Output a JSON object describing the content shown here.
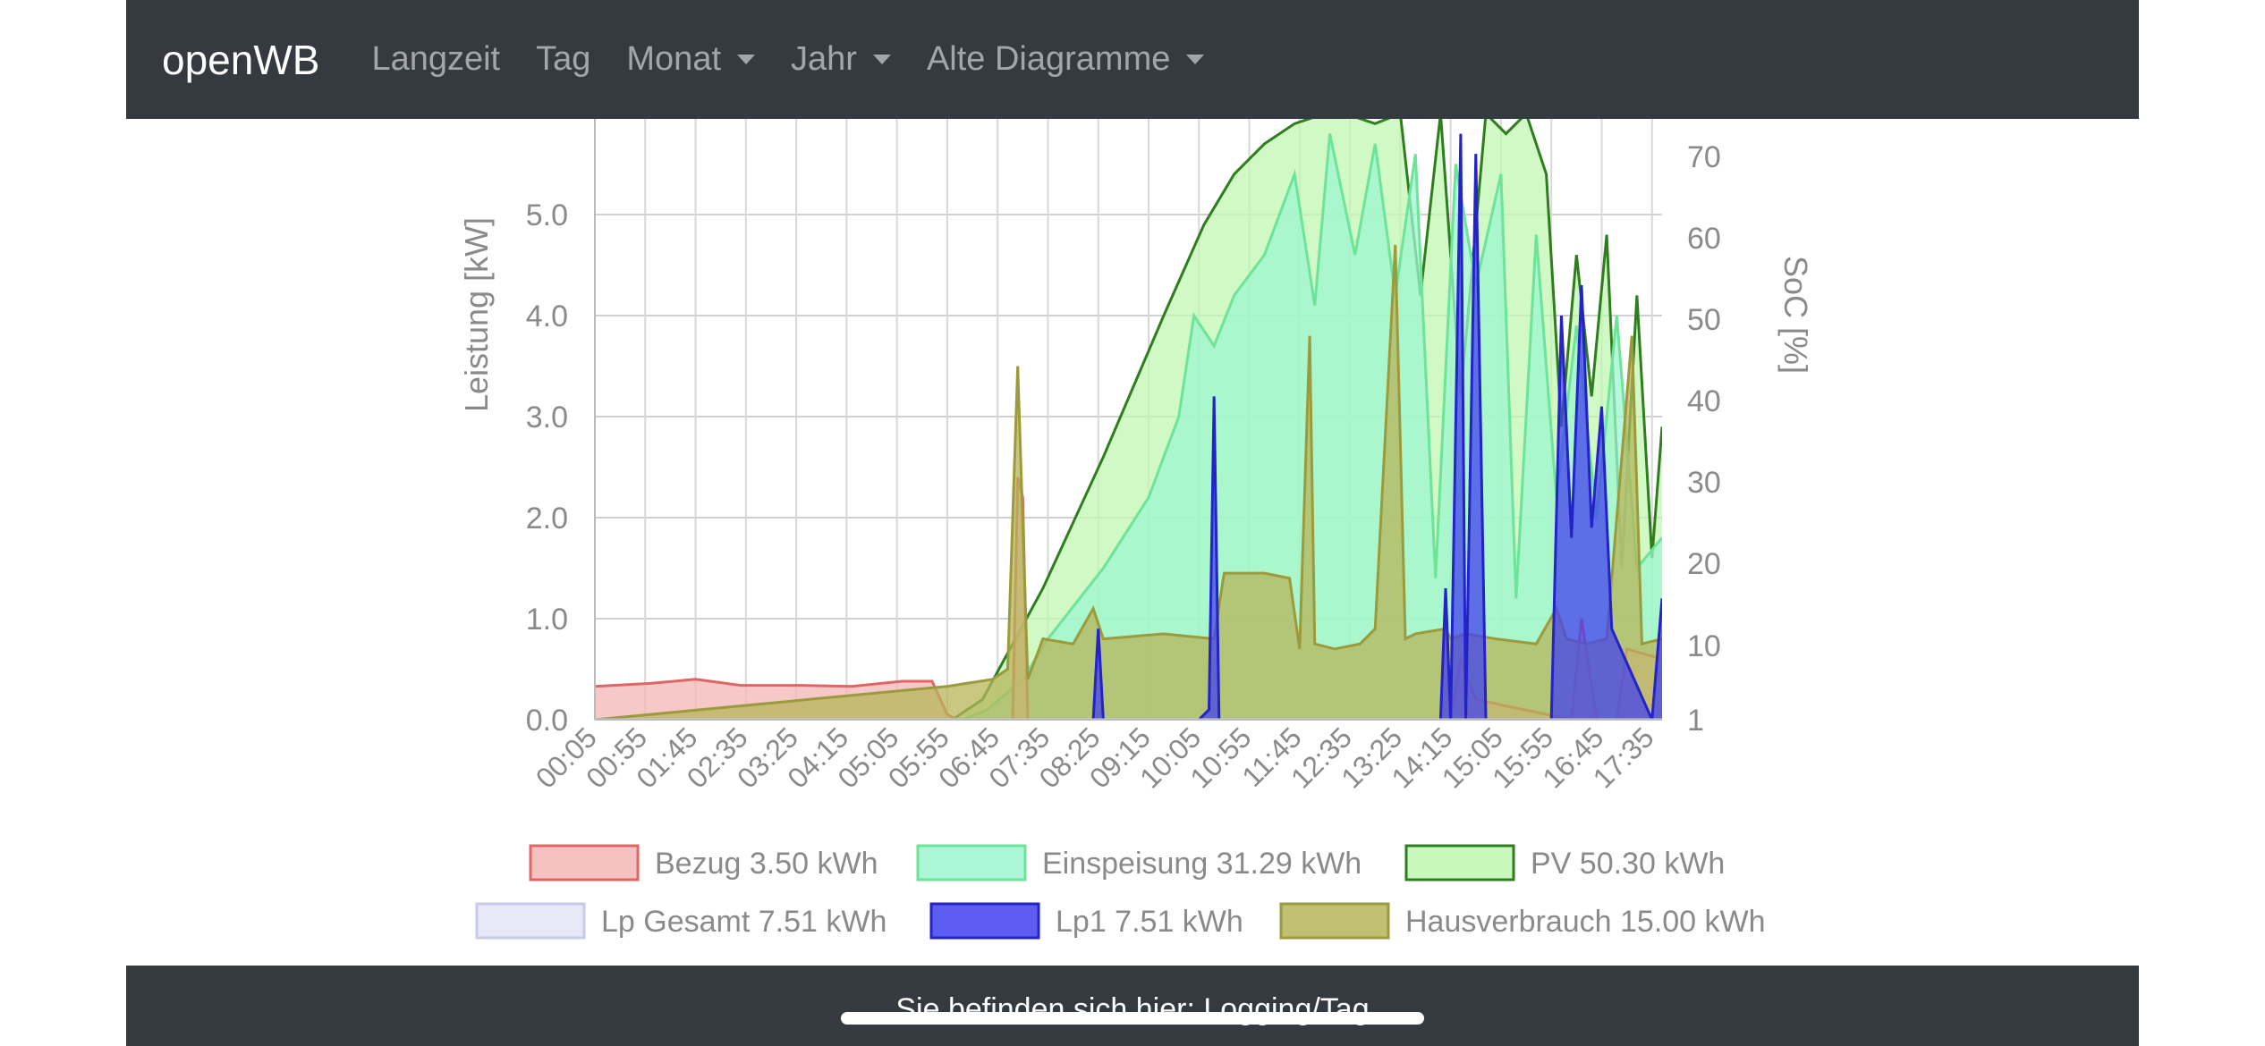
{
  "nav": {
    "brand": "openWB",
    "items": [
      {
        "label": "Langzeit",
        "dropdown": false
      },
      {
        "label": "Tag",
        "dropdown": false
      },
      {
        "label": "Monat",
        "dropdown": true
      },
      {
        "label": "Jahr",
        "dropdown": true
      },
      {
        "label": "Alte Diagramme",
        "dropdown": true
      }
    ]
  },
  "footer": {
    "breadcrumb": "Sie befinden sich hier: Logging/Tag"
  },
  "chart_data": {
    "type": "area",
    "ylabel": "Leistung [kW]",
    "y2label": "SoC [%]",
    "ylim": [
      0,
      5.8
    ],
    "y_ticks": [
      "0.0",
      "1.0",
      "2.0",
      "3.0",
      "4.0",
      "5.0"
    ],
    "y2_ticks": [
      "1",
      "10",
      "20",
      "30",
      "40",
      "50",
      "60",
      "70"
    ],
    "x_ticks": [
      "00:05",
      "00:55",
      "01:45",
      "02:35",
      "03:25",
      "04:15",
      "05:05",
      "05:55",
      "06:45",
      "07:35",
      "08:25",
      "09:15",
      "10:05",
      "10:55",
      "11:45",
      "12:35",
      "13:25",
      "14:15",
      "15:05",
      "15:55",
      "16:45",
      "17:35"
    ],
    "grid": true,
    "legend_position": "bottom",
    "series": [
      {
        "name": "Bezug 3.50 kWh",
        "color": "#e06666",
        "fill": "#f4b6b6",
        "x": [
          "00:05",
          "01:00",
          "01:45",
          "02:30",
          "03:30",
          "04:20",
          "05:10",
          "05:40",
          "05:55",
          "06:05",
          "07:00",
          "07:05",
          "07:10",
          "07:15",
          "08:15",
          "14:05",
          "14:10",
          "14:15",
          "14:25",
          "14:40",
          "16:15",
          "16:25",
          "16:40",
          "17:00",
          "17:10",
          "17:45"
        ],
        "values": [
          0.33,
          0.36,
          0.4,
          0.34,
          0.34,
          0.33,
          0.38,
          0.38,
          0.05,
          0,
          0,
          2.4,
          2.2,
          0,
          0,
          0,
          1.2,
          0,
          0.6,
          0.2,
          0,
          1.0,
          0,
          0,
          0.7,
          0.6
        ]
      },
      {
        "name": "Einspeisung 31.29 kWh",
        "color": "#6ee39a",
        "fill": "#9ef6cf",
        "x": [
          "00:05",
          "06:10",
          "06:35",
          "07:10",
          "07:35",
          "08:30",
          "09:15",
          "09:45",
          "10:00",
          "10:20",
          "10:40",
          "11:10",
          "11:40",
          "12:00",
          "12:15",
          "12:40",
          "13:00",
          "13:20",
          "13:40",
          "14:00",
          "14:20",
          "14:40",
          "15:05",
          "15:20",
          "15:40",
          "16:00",
          "16:20",
          "16:40",
          "17:00",
          "17:20",
          "17:45"
        ],
        "values": [
          0,
          0,
          0.1,
          0.4,
          0.8,
          1.5,
          2.2,
          3.0,
          4.0,
          3.7,
          4.2,
          4.6,
          5.4,
          4.1,
          5.8,
          4.6,
          5.7,
          4.2,
          5.6,
          1.4,
          5.5,
          4.3,
          5.4,
          1.2,
          4.8,
          2.2,
          3.9,
          2.0,
          4.0,
          1.5,
          1.8
        ]
      },
      {
        "name": "PV 50.30 kWh",
        "color": "#2e7d1e",
        "fill": "#c0f7b2",
        "x": [
          "00:05",
          "06:00",
          "06:30",
          "07:30",
          "08:30",
          "09:30",
          "10:10",
          "10:40",
          "11:10",
          "11:40",
          "12:10",
          "12:30",
          "13:00",
          "13:25",
          "13:45",
          "14:05",
          "14:25",
          "14:50",
          "15:10",
          "15:30",
          "15:50",
          "16:05",
          "16:20",
          "16:35",
          "16:50",
          "17:05",
          "17:20",
          "17:35",
          "17:45"
        ],
        "values": [
          0,
          0,
          0.2,
          1.3,
          2.6,
          4.0,
          4.9,
          5.4,
          5.7,
          5.9,
          6.0,
          6.0,
          5.9,
          6.0,
          4.2,
          6.0,
          3.2,
          6.0,
          5.8,
          6.0,
          5.4,
          2.9,
          4.6,
          3.2,
          4.8,
          1.5,
          4.2,
          1.6,
          2.9
        ]
      },
      {
        "name": "Lp Gesamt 7.51 kWh",
        "color": "#c9c9e8",
        "fill": "#e4e4f7",
        "x": [
          "00:05",
          "17:45"
        ],
        "values": [
          0,
          0
        ]
      },
      {
        "name": "Lp1 7.51 kWh",
        "color": "#2323c8",
        "fill": "#4141ee",
        "x": [
          "00:05",
          "08:20",
          "08:25",
          "08:30",
          "10:05",
          "10:15",
          "10:20",
          "10:25",
          "14:05",
          "14:10",
          "14:15",
          "14:25",
          "14:30",
          "14:40",
          "14:50",
          "15:10",
          "15:55",
          "16:05",
          "16:15",
          "16:25",
          "16:35",
          "16:45",
          "16:55",
          "17:35",
          "17:45"
        ],
        "values": [
          0,
          0,
          0.9,
          0,
          0,
          0.1,
          3.2,
          0,
          0,
          1.3,
          0,
          5.8,
          0,
          5.6,
          0,
          0,
          0,
          4.0,
          1.8,
          4.3,
          1.9,
          3.1,
          0.9,
          0,
          1.2
        ]
      },
      {
        "name": "Hausverbrauch 15.00 kWh",
        "color": "#9b9b3d",
        "fill": "#b5b55a",
        "x": [
          "00:05",
          "05:55",
          "06:40",
          "06:55",
          "07:05",
          "07:15",
          "07:30",
          "08:00",
          "08:20",
          "08:30",
          "09:30",
          "10:20",
          "10:30",
          "11:10",
          "11:35",
          "11:45",
          "11:55",
          "12:00",
          "12:20",
          "12:45",
          "13:00",
          "13:20",
          "13:30",
          "13:40",
          "14:10",
          "14:15",
          "14:30",
          "15:00",
          "15:40",
          "16:00",
          "16:10",
          "16:30",
          "16:50",
          "17:15",
          "17:25",
          "17:45"
        ],
        "values": [
          0,
          0.33,
          0.4,
          0.5,
          3.5,
          0.4,
          0.8,
          0.75,
          1.1,
          0.8,
          0.85,
          0.8,
          1.45,
          1.45,
          1.4,
          0.7,
          3.8,
          0.75,
          0.7,
          0.75,
          0.9,
          4.7,
          0.8,
          0.85,
          0.9,
          0.8,
          0.85,
          0.8,
          0.75,
          1.1,
          0.8,
          0.75,
          0.8,
          3.8,
          0.75,
          0.8
        ]
      }
    ]
  }
}
